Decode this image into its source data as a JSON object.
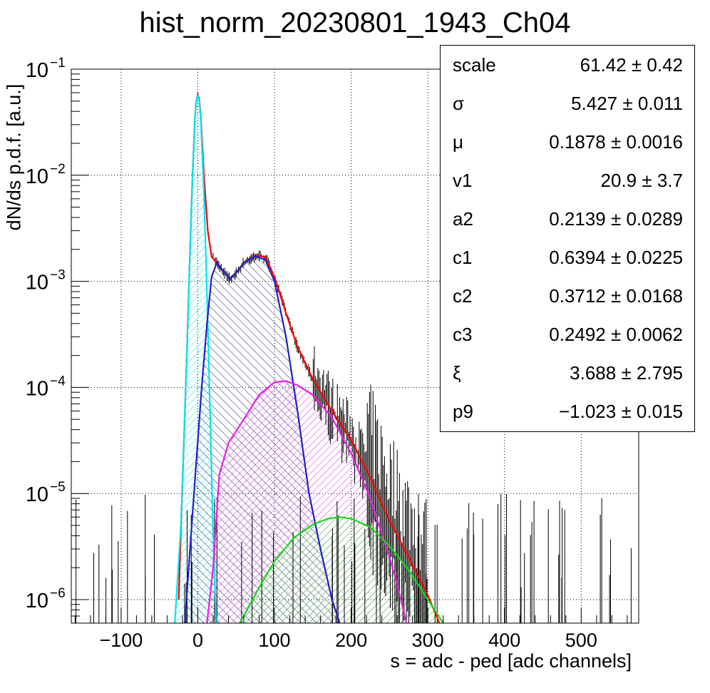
{
  "title": "hist_norm_20230801_1943_Ch04",
  "stats": [
    {
      "label": "scale",
      "value": "61.42 ± 0.42"
    },
    {
      "label": "σ",
      "value": "5.427 ± 0.011"
    },
    {
      "label": "μ",
      "value": "0.1878 ± 0.0016"
    },
    {
      "label": "v1",
      "value": "20.9 ± 3.7"
    },
    {
      "label": "a2",
      "value": "0.2139 ± 0.0289"
    },
    {
      "label": "c1",
      "value": "0.6394 ± 0.0225"
    },
    {
      "label": "c2",
      "value": "0.3712 ± 0.0168"
    },
    {
      "label": "c3",
      "value": "0.2492 ± 0.0062"
    },
    {
      "label": "ξ",
      "value": "3.688 ± 2.795"
    },
    {
      "label": "p9",
      "value": "−1.023 ± 0.015"
    }
  ],
  "chart_data": {
    "type": "line",
    "title": "hist_norm_20230801_1943_Ch04",
    "xlabel": "s = adc - ped [adc channels]",
    "ylabel": "dN/ds p.d.f. [a.u.]",
    "xlim": [
      -165,
      575
    ],
    "ylim": [
      6e-07,
      0.1
    ],
    "yscale": "log",
    "grid": true,
    "x_ticks": [
      {
        "value": -100,
        "label": "−100"
      },
      {
        "value": 0,
        "label": "0"
      },
      {
        "value": 100,
        "label": "100"
      },
      {
        "value": 200,
        "label": "200"
      },
      {
        "value": 300,
        "label": "300"
      },
      {
        "value": 400,
        "label": "400"
      },
      {
        "value": 500,
        "label": "500"
      }
    ],
    "y_ticks": [
      {
        "value": 0.1,
        "base": "10",
        "exp": "−1"
      },
      {
        "value": 0.01,
        "base": "10",
        "exp": "−2"
      },
      {
        "value": 0.001,
        "base": "10",
        "exp": "−3"
      },
      {
        "value": 0.0001,
        "base": "10",
        "exp": "−4"
      },
      {
        "value": 1e-05,
        "base": "10",
        "exp": "−5"
      },
      {
        "value": 1e-06,
        "base": "10",
        "exp": "−6"
      }
    ],
    "series": [
      {
        "color": "#ff0000",
        "hatch": false,
        "x": [
          -25,
          -15,
          -8,
          -4,
          -2,
          0,
          2,
          4,
          8,
          13,
          18,
          25,
          35,
          42,
          50,
          60,
          75,
          88,
          100,
          115,
          130,
          150,
          175,
          200,
          225,
          250,
          275,
          300,
          315
        ],
        "y": [
          1e-06,
          0.00015,
          0.006,
          0.033,
          0.05,
          0.058,
          0.052,
          0.035,
          0.01,
          0.003,
          0.0017,
          0.0015,
          0.0012,
          0.00105,
          0.0012,
          0.0015,
          0.00175,
          0.0017,
          0.0011,
          0.0005,
          0.00024,
          0.00012,
          6e-05,
          3.2e-05,
          1.4e-05,
          5.5e-06,
          2.5e-06,
          1.1e-06,
          6e-07
        ]
      },
      {
        "color": "#00e5f0",
        "hatch": true,
        "x": [
          -30,
          -22,
          -15,
          -8,
          -4,
          -2,
          0,
          2,
          4,
          8,
          12,
          16,
          20,
          24
        ],
        "y": [
          6e-07,
          5e-06,
          0.00015,
          0.006,
          0.033,
          0.05,
          0.057,
          0.05,
          0.033,
          0.0068,
          0.00075,
          6e-05,
          4e-06,
          6e-07
        ]
      },
      {
        "color": "#1f1fc8",
        "hatch": true,
        "x": [
          -17,
          -5,
          5,
          12,
          18,
          25,
          35,
          42,
          50,
          60,
          75,
          88,
          100,
          115,
          130,
          145,
          160,
          175,
          185
        ],
        "y": [
          6e-07,
          1e-05,
          0.0001,
          0.0004,
          0.0011,
          0.0015,
          0.0012,
          0.00105,
          0.0012,
          0.0015,
          0.00172,
          0.0016,
          0.001,
          0.0003,
          6e-05,
          1e-05,
          3e-06,
          1e-06,
          6e-07
        ]
      },
      {
        "color": "#e81ee8",
        "hatch": true,
        "x": [
          12,
          20,
          28,
          40,
          60,
          80,
          100,
          115,
          130,
          150,
          175,
          200,
          225,
          250,
          260,
          268,
          272
        ],
        "y": [
          6e-07,
          2e-06,
          1.5e-05,
          3e-05,
          5e-05,
          8.5e-05,
          0.000112,
          0.000115,
          0.000105,
          8.5e-05,
          5.2e-05,
          2.4e-05,
          9e-06,
          2.5e-06,
          1.4e-06,
          8e-07,
          6e-07
        ]
      },
      {
        "color": "#12d812",
        "hatch": true,
        "x": [
          55,
          80,
          100,
          125,
          150,
          170,
          185,
          200,
          225,
          250,
          275,
          300,
          320
        ],
        "y": [
          6e-07,
          1.3e-06,
          2.3e-06,
          3.8e-06,
          5.1e-06,
          5.8e-06,
          6e-06,
          5.8e-06,
          4.8e-06,
          3.2e-06,
          1.9e-06,
          1e-06,
          6e-07
        ]
      }
    ]
  }
}
